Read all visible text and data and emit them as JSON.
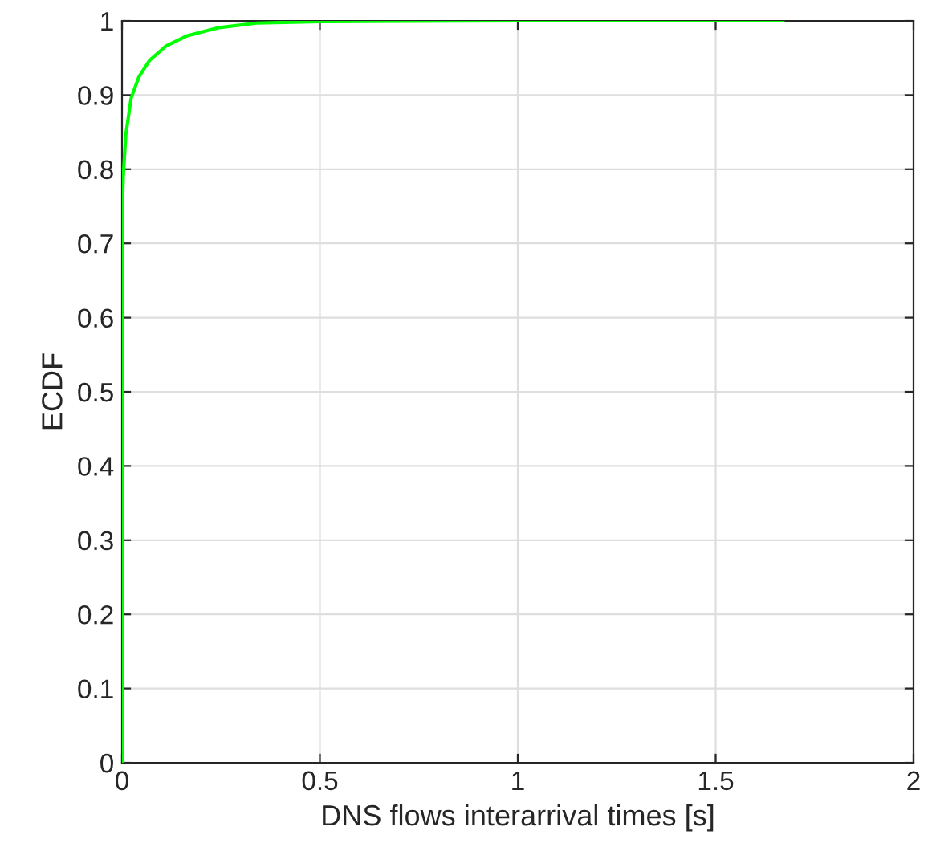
{
  "chart_data": {
    "type": "line",
    "xlabel": "DNS flows interarrival times [s]",
    "ylabel": "ECDF",
    "x": [
      0,
      0,
      0.001,
      0.003,
      0.0095,
      0.023,
      0.043,
      0.07,
      0.111,
      0.165,
      0.246,
      0.34,
      0.5,
      1.0,
      1.67
    ],
    "series": [
      {
        "color": "#00ff00",
        "values": [
          0,
          0.7,
          0.75,
          0.79,
          0.846,
          0.896,
          0.925,
          0.947,
          0.966,
          0.98,
          0.991,
          0.997,
          0.999,
          1,
          1
        ]
      }
    ],
    "xlim": [
      0,
      2
    ],
    "xticks": [
      0,
      0.5,
      1,
      1.5,
      2
    ],
    "ylim": [
      0,
      1
    ],
    "yticks": [
      0,
      0.1,
      0.2,
      0.3,
      0.4,
      0.5,
      0.6,
      0.7,
      0.8,
      0.9,
      1
    ],
    "grid": true
  }
}
